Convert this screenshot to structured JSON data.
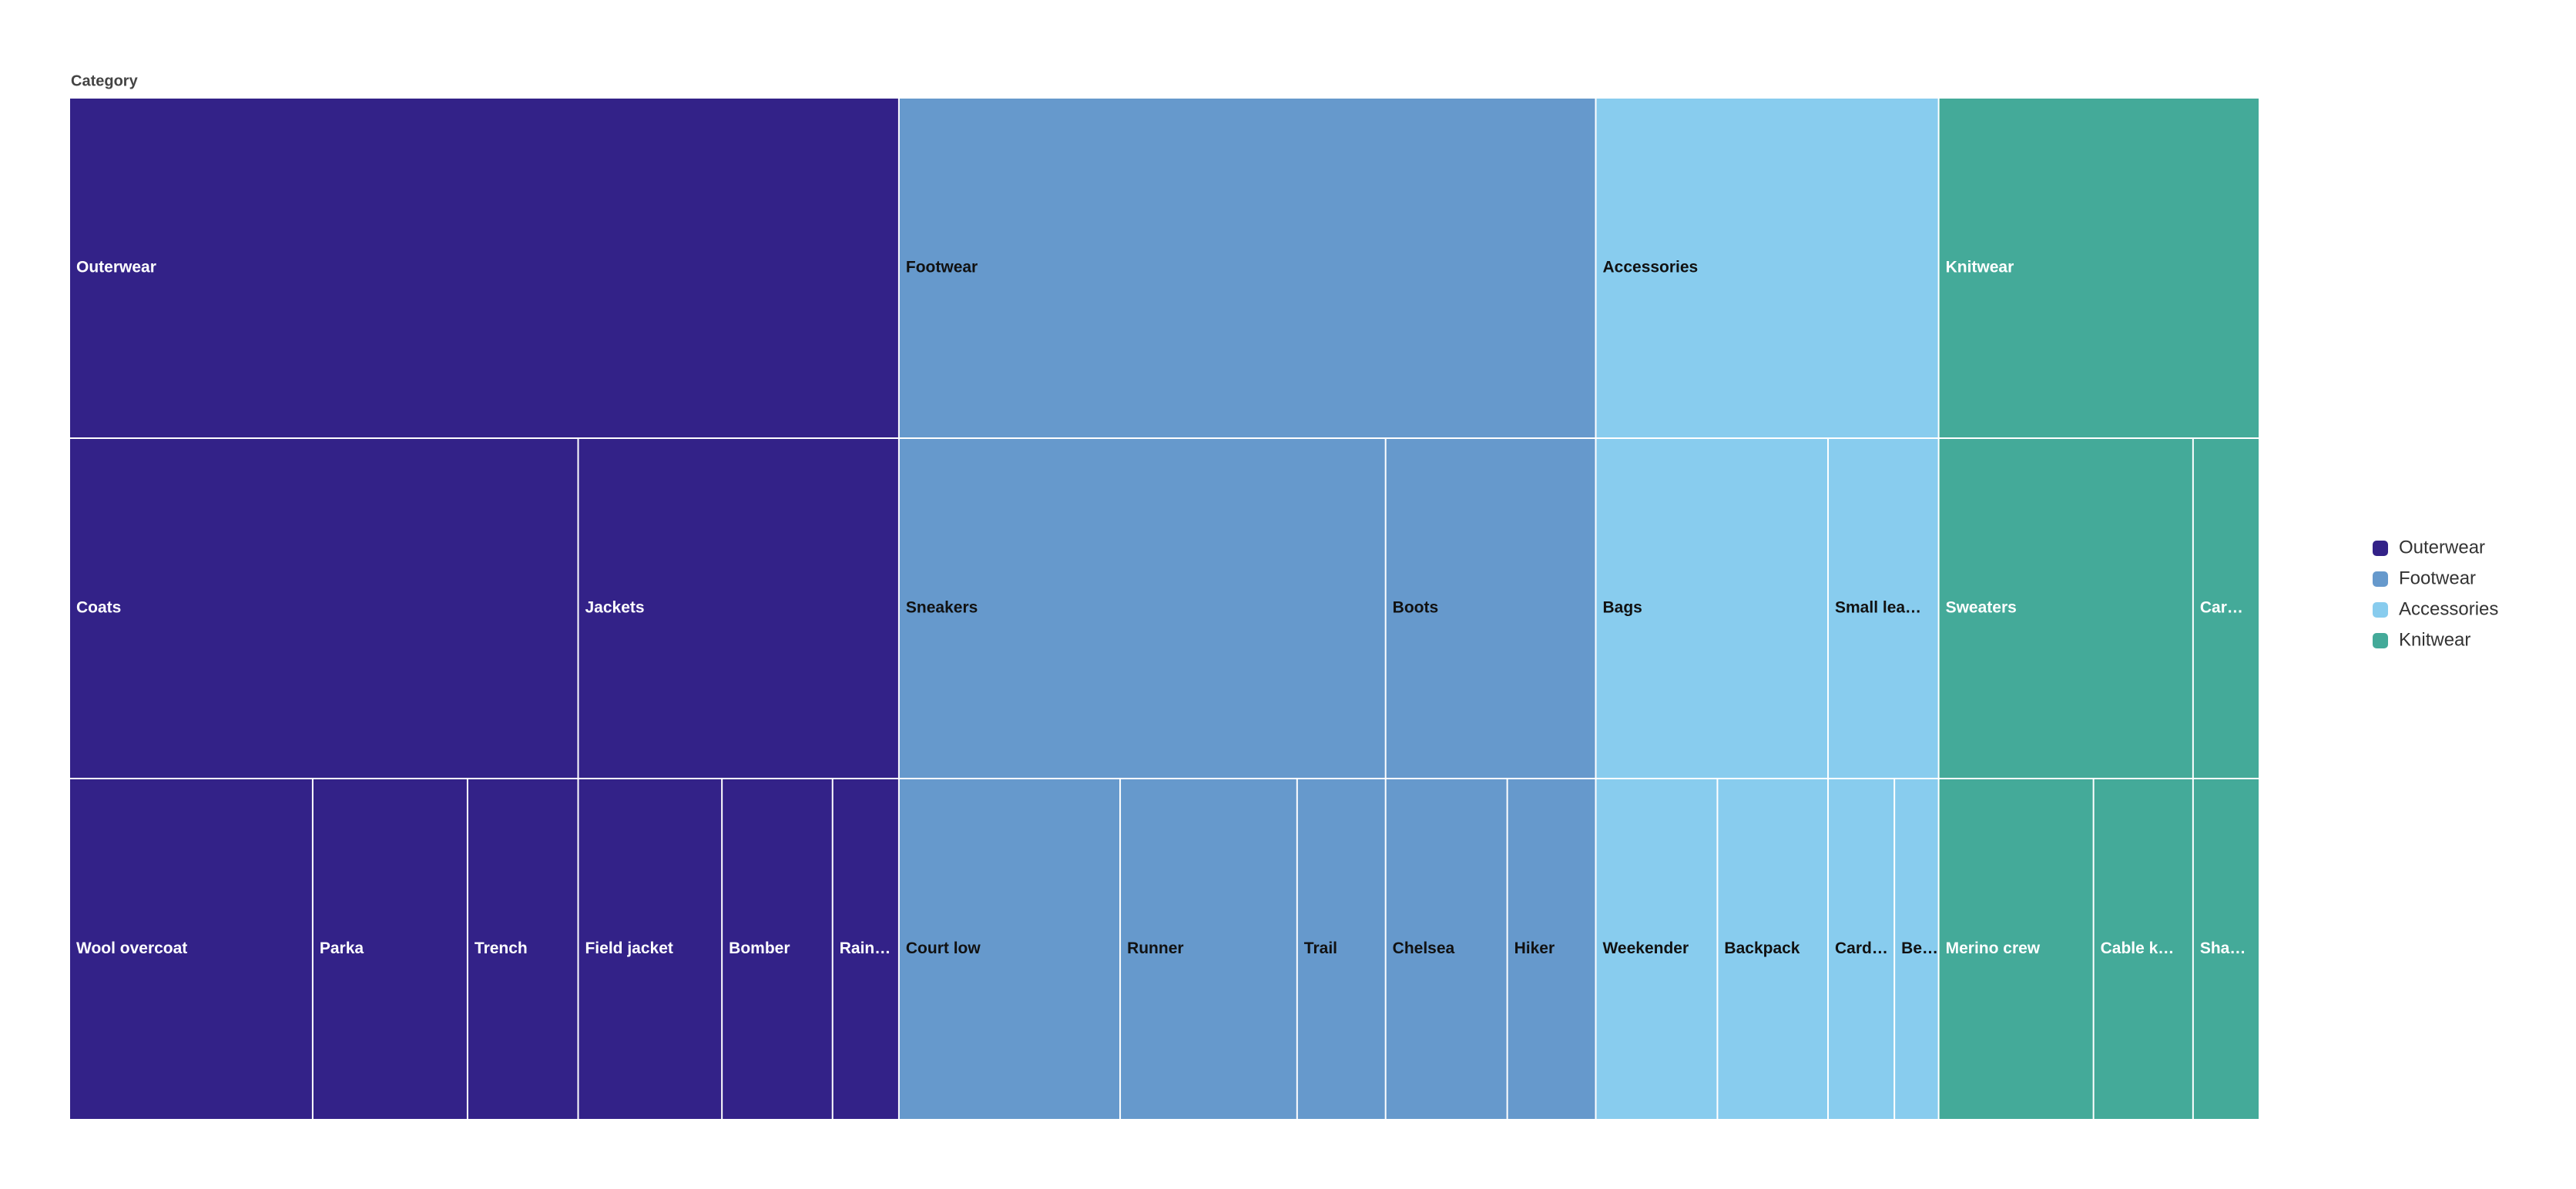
{
  "chart_data": {
    "type": "icicle",
    "title": "Category",
    "legend": "right",
    "series": [
      {
        "name": "Outerwear",
        "color": "#332288",
        "label_color": "#ffffff",
        "children": [
          {
            "name": "Coats",
            "children": [
              {
                "name": "Wool overcoat",
                "value": 22
              },
              {
                "name": "Parka",
                "value": 14
              },
              {
                "name": "Trench",
                "value": 10
              }
            ]
          },
          {
            "name": "Jackets",
            "children": [
              {
                "name": "Field jacket",
                "value": 13
              },
              {
                "name": "Bomber",
                "value": 10
              },
              {
                "name": "Rain…",
                "value": 6
              }
            ]
          }
        ]
      },
      {
        "name": "Footwear",
        "color": "#6699cc",
        "label_color": "#111111",
        "children": [
          {
            "name": "Sneakers",
            "children": [
              {
                "name": "Court low",
                "value": 20
              },
              {
                "name": "Runner",
                "value": 16
              },
              {
                "name": "Trail",
                "value": 8
              }
            ]
          },
          {
            "name": "Boots",
            "children": [
              {
                "name": "Chelsea",
                "value": 11
              },
              {
                "name": "Hiker",
                "value": 8
              }
            ]
          }
        ]
      },
      {
        "name": "Accessories",
        "color": "#88ccee",
        "label_color": "#111111",
        "children": [
          {
            "name": "Bags",
            "children": [
              {
                "name": "Weekender",
                "value": 11
              },
              {
                "name": "Backpack",
                "value": 10
              }
            ]
          },
          {
            "name": "Small lea…",
            "children": [
              {
                "name": "Card…",
                "value": 6
              },
              {
                "name": "Be…",
                "value": 4
              }
            ]
          }
        ]
      },
      {
        "name": "Knitwear",
        "color": "#44aa99",
        "label_color": "#ffffff",
        "children": [
          {
            "name": "Sweaters",
            "children": [
              {
                "name": "Merino crew",
                "value": 14
              },
              {
                "name": "Cable k…",
                "value": 9
              }
            ]
          },
          {
            "name": "Car…",
            "children": [
              {
                "name": "Sha…",
                "value": 6
              }
            ]
          }
        ]
      }
    ]
  }
}
